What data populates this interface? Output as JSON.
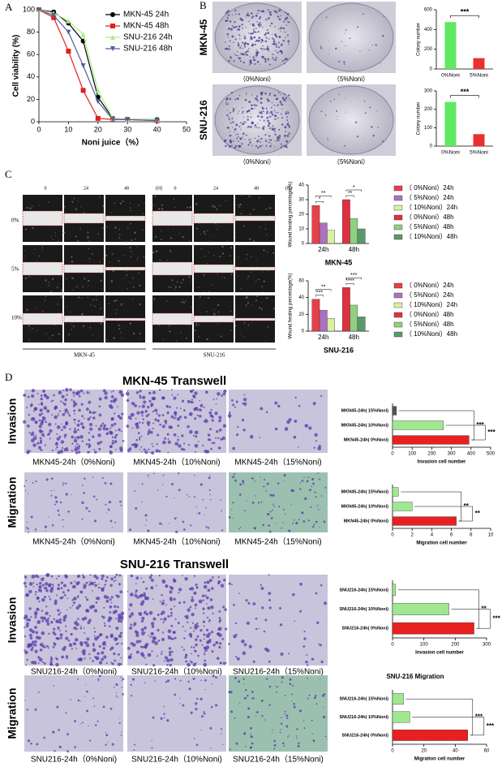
{
  "figure": {
    "panel_labels": [
      "A",
      "B",
      "C",
      "D"
    ],
    "colony": {
      "rows": [
        "MKN-45",
        "SNU-216"
      ],
      "captions": [
        "（0%Noni）",
        "（5%Noni）"
      ]
    },
    "scratch": {
      "times": [
        "0",
        "24",
        "48",
        "(H)"
      ],
      "rows": [
        "0%",
        "5%",
        "10%"
      ],
      "cells": [
        "MKN-45",
        "SNU-216"
      ]
    },
    "transwell": [
      {
        "title": "MKN-45 Transwell",
        "rows": [
          "Invasion",
          "Migration"
        ],
        "captions": [
          [
            "MKN45-24h（0%Noni)",
            "MKN45-24h（10%Noni)",
            "MKN45-24h（15%Noni)"
          ],
          [
            "MKN45-24h（0%Noni)",
            "MKN45-24h（10%Noni)",
            "MKN45-24h（15%Noni)"
          ]
        ]
      },
      {
        "title": "SNU-216 Transwell",
        "rows": [
          "Invasion",
          "Migration"
        ],
        "captions": [
          [
            "SNU216-24h（0%Noni)",
            "SNU216-24h（10%Noni)",
            "SNU216-24h（15%Noni)"
          ],
          [
            "SNU216-24h（0%Noni)",
            "SNU216-24h（10%Noni)",
            "SNU216-24h（15%Noni)"
          ]
        ]
      }
    ]
  },
  "chart_data": [
    {
      "type": "line",
      "x_label": "Noni juice（%）",
      "y_label": "Cell viability (%)",
      "x": [
        0,
        5,
        10,
        15,
        20,
        25,
        30,
        40
      ],
      "series": [
        {
          "name": "MKN-45 24h",
          "color": "#000000",
          "marker": "circle",
          "values": [
            100,
            98,
            88,
            72,
            22,
            3,
            2,
            2
          ]
        },
        {
          "name": "MKN-45 48h",
          "color": "#e02020",
          "marker": "square",
          "values": [
            100,
            93,
            63,
            28,
            3,
            2,
            2,
            1
          ]
        },
        {
          "name": "SNU-216 24h",
          "color": "#a8f080",
          "marker": "triangle-up",
          "values": [
            100,
            97,
            90,
            78,
            28,
            3,
            2,
            2
          ]
        },
        {
          "name": "SNU-216 48h",
          "color": "#5060a0",
          "marker": "triangle-down",
          "values": [
            100,
            95,
            80,
            50,
            18,
            2,
            2,
            1
          ]
        }
      ],
      "xlim": [
        0,
        50
      ],
      "xticks": [
        0,
        10,
        20,
        30,
        40,
        50
      ],
      "ylim": [
        0,
        100
      ],
      "yticks": [
        0,
        20,
        40,
        60,
        80,
        100
      ]
    },
    {
      "type": "bar",
      "y_label": "Colony number",
      "categories": [
        "0%Noni",
        "5%Noni"
      ],
      "values": [
        475,
        110
      ],
      "colors": [
        "#60e860",
        "#e83030"
      ],
      "ylim": [
        0,
        600
      ],
      "yticks": [
        0,
        200,
        400,
        600
      ],
      "annotations": [
        "***"
      ]
    },
    {
      "type": "bar",
      "y_label": "Colony number",
      "categories": [
        "0%Noni",
        "5%Noni"
      ],
      "values": [
        240,
        65
      ],
      "colors": [
        "#60e860",
        "#e83030"
      ],
      "ylim": [
        0,
        300
      ],
      "yticks": [
        0,
        100,
        200,
        300
      ],
      "annotations": [
        "***"
      ]
    },
    {
      "type": "bar",
      "title": "MKN-45",
      "y_label": "Wound healing percentage(%)",
      "categories": [
        "24h",
        "48h"
      ],
      "series": [
        {
          "name": "（ 0%Noni）24h",
          "color": "#e8404a",
          "values": [
            26,
            null
          ]
        },
        {
          "name": "（ 5%Noni）24h",
          "color": "#b070c0",
          "values": [
            14,
            null
          ]
        },
        {
          "name": "（ 10%Noni）24h",
          "color": "#d8f0a0",
          "values": [
            9,
            null
          ]
        },
        {
          "name": "（ 0%Noni）48h",
          "color": "#e03040",
          "values": [
            null,
            30
          ]
        },
        {
          "name": "（ 5%Noni）48h",
          "color": "#90d080",
          "values": [
            null,
            17
          ]
        },
        {
          "name": "（ 10%Noni）48h",
          "color": "#5a9a6a",
          "values": [
            null,
            10
          ]
        }
      ],
      "ylim": [
        0,
        40
      ],
      "yticks": [
        0,
        10,
        20,
        30,
        40
      ],
      "annotations": [
        "**",
        "*",
        "*",
        "**"
      ]
    },
    {
      "type": "bar",
      "title": "SNU-216",
      "y_label": "Wound healing percentage(%)",
      "categories": [
        "24h",
        "48h"
      ],
      "series": [
        {
          "name": "（ 0%Noni）24h",
          "color": "#e8404a",
          "values": [
            38,
            null
          ]
        },
        {
          "name": "（ 5%Noni）24h",
          "color": "#b070c0",
          "values": [
            25,
            null
          ]
        },
        {
          "name": "（ 10%Noni）24h",
          "color": "#d8f0a0",
          "values": [
            15,
            null
          ]
        },
        {
          "name": "（ 0%Noni）48h",
          "color": "#e03040",
          "values": [
            null,
            52
          ]
        },
        {
          "name": "（ 5%Noni）48h",
          "color": "#90d080",
          "values": [
            null,
            31
          ]
        },
        {
          "name": "（ 10%Noni）48h",
          "color": "#5a9a6a",
          "values": [
            null,
            17
          ]
        }
      ],
      "ylim": [
        0,
        60
      ],
      "yticks": [
        0,
        20,
        40,
        60
      ],
      "annotations": [
        "**",
        "***",
        "***",
        "****"
      ]
    },
    {
      "type": "barh",
      "x_label": "Invasion cell number",
      "categories": [
        "MKN45-24h( 15%Noni)",
        "MKN45-24h( 10%Noni)",
        "MKN45-24h( 0%Noni)"
      ],
      "values": [
        20,
        260,
        390
      ],
      "colors": [
        "#555555",
        "#a0e890",
        "#e82020"
      ],
      "xlim": [
        0,
        500
      ],
      "xticks": [
        0,
        100,
        200,
        300,
        400,
        500
      ],
      "annotations": [
        "***",
        "***"
      ]
    },
    {
      "type": "barh",
      "x_label": "Migration cell number",
      "categories": [
        "MKN45-24h( 15%Noni)",
        "MKN45-24h( 10%Noni)",
        "MKN45-24h( 0%Noni)"
      ],
      "values": [
        0.6,
        2,
        6.5
      ],
      "colors": [
        "#a0e890",
        "#a0e890",
        "#e82020"
      ],
      "xlim": [
        0,
        10
      ],
      "xticks": [
        0,
        2,
        4,
        6,
        8,
        10
      ],
      "annotations": [
        "**",
        "**"
      ]
    },
    {
      "type": "barh",
      "x_label": "Invasion cell number",
      "categories": [
        "SNU216-24h( 15%Noni)",
        "SNU216-24h( 10%Noni)",
        "SNU216-24h( 0%Noni)"
      ],
      "values": [
        10,
        180,
        260
      ],
      "colors": [
        "#a0e890",
        "#a0e890",
        "#e82020"
      ],
      "xlim": [
        0,
        300
      ],
      "xticks": [
        0,
        100,
        200,
        300
      ],
      "annotations": [
        "**",
        "***"
      ]
    },
    {
      "type": "barh",
      "title": "SNU-216  Migration",
      "x_label": "Migration cell number",
      "categories": [
        "SNU216-24h( 15%Noni)",
        "SNU216-24h( 10%Noni)",
        "SNU216-24h( 0%Noni)"
      ],
      "values": [
        7,
        11,
        48
      ],
      "colors": [
        "#a0e890",
        "#a0e890",
        "#e82020"
      ],
      "xlim": [
        0,
        60
      ],
      "xticks": [
        0,
        20,
        40,
        60
      ],
      "annotations": [
        "***",
        "***"
      ]
    }
  ]
}
